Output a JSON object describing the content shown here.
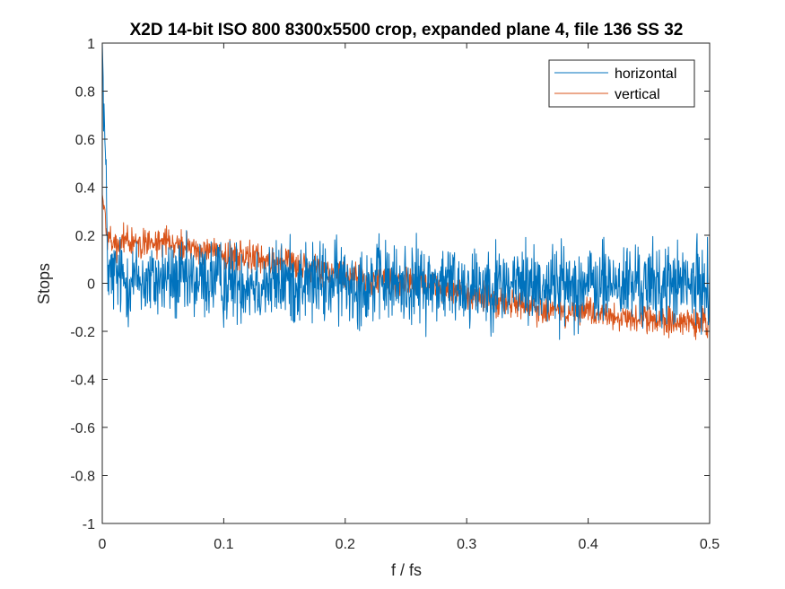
{
  "chart_data": {
    "type": "line",
    "title": "X2D 14-bit ISO 800 8300x5500 crop, expanded plane 4, file 136 SS 32",
    "xlabel": "f / fs",
    "ylabel": "Stops",
    "xlim": [
      0,
      0.5
    ],
    "ylim": [
      -1,
      1
    ],
    "x_ticks": [
      0,
      0.1,
      0.2,
      0.3,
      0.4,
      0.5
    ],
    "x_tick_labels": [
      "0",
      "0.1",
      "0.2",
      "0.3",
      "0.4",
      "0.5"
    ],
    "y_ticks": [
      -1,
      -0.8,
      -0.6,
      -0.4,
      -0.2,
      0,
      0.2,
      0.4,
      0.6,
      0.8,
      1
    ],
    "y_tick_labels": [
      "-1",
      "-0.8",
      "-0.6",
      "-0.4",
      "-0.2",
      "0",
      "0.2",
      "0.4",
      "0.6",
      "0.8",
      "1"
    ],
    "grid": false,
    "legend_position": "top-right",
    "series": [
      {
        "name": "horizontal",
        "color": "#0072BD",
        "x": [
          0,
          0.005,
          0.01,
          0.02,
          0.03,
          0.04,
          0.05,
          0.06,
          0.07,
          0.08,
          0.09,
          0.1,
          0.11,
          0.12,
          0.13,
          0.14,
          0.15,
          0.16,
          0.17,
          0.18,
          0.19,
          0.2,
          0.21,
          0.22,
          0.23,
          0.24,
          0.25,
          0.26,
          0.27,
          0.28,
          0.29,
          0.3,
          0.31,
          0.32,
          0.33,
          0.34,
          0.35,
          0.36,
          0.37,
          0.38,
          0.39,
          0.4,
          0.41,
          0.42,
          0.43,
          0.44,
          0.45,
          0.46,
          0.47,
          0.48,
          0.49,
          0.5
        ],
        "y": [
          1.0,
          0.02,
          0.03,
          0.01,
          0.02,
          0.0,
          0.02,
          0.01,
          0.0,
          0.01,
          0.02,
          0.0,
          0.01,
          0.01,
          0.0,
          0.0,
          0.01,
          0.0,
          0.01,
          0.0,
          0.0,
          0.01,
          0.0,
          0.0,
          0.01,
          -0.01,
          0.0,
          0.0,
          -0.01,
          0.0,
          0.0,
          -0.01,
          0.0,
          0.0,
          -0.01,
          0.0,
          0.0,
          -0.01,
          0.0,
          -0.01,
          0.0,
          -0.01,
          -0.01,
          0.0,
          -0.01,
          0.0,
          -0.01,
          -0.01,
          0.0,
          -0.01,
          -0.01,
          -0.01
        ],
        "noise_amplitude": 0.085
      },
      {
        "name": "vertical",
        "color": "#D95319",
        "x": [
          0,
          0.005,
          0.01,
          0.02,
          0.03,
          0.04,
          0.05,
          0.06,
          0.07,
          0.08,
          0.09,
          0.1,
          0.11,
          0.12,
          0.13,
          0.14,
          0.15,
          0.16,
          0.17,
          0.18,
          0.19,
          0.2,
          0.21,
          0.22,
          0.23,
          0.24,
          0.25,
          0.26,
          0.27,
          0.28,
          0.29,
          0.3,
          0.31,
          0.32,
          0.33,
          0.34,
          0.35,
          0.36,
          0.37,
          0.38,
          0.39,
          0.4,
          0.41,
          0.42,
          0.43,
          0.44,
          0.45,
          0.46,
          0.47,
          0.48,
          0.49,
          0.5
        ],
        "y": [
          0.37,
          0.18,
          0.16,
          0.17,
          0.17,
          0.17,
          0.18,
          0.17,
          0.15,
          0.14,
          0.13,
          0.12,
          0.11,
          0.11,
          0.1,
          0.09,
          0.08,
          0.07,
          0.06,
          0.05,
          0.04,
          0.03,
          0.03,
          0.02,
          0.01,
          0.01,
          0.0,
          0.0,
          -0.01,
          -0.02,
          -0.03,
          -0.04,
          -0.05,
          -0.07,
          -0.08,
          -0.09,
          -0.1,
          -0.1,
          -0.11,
          -0.11,
          -0.12,
          -0.13,
          -0.13,
          -0.14,
          -0.14,
          -0.15,
          -0.15,
          -0.16,
          -0.16,
          -0.17,
          -0.18,
          -0.17
        ],
        "noise_amplitude": 0.03
      }
    ]
  }
}
